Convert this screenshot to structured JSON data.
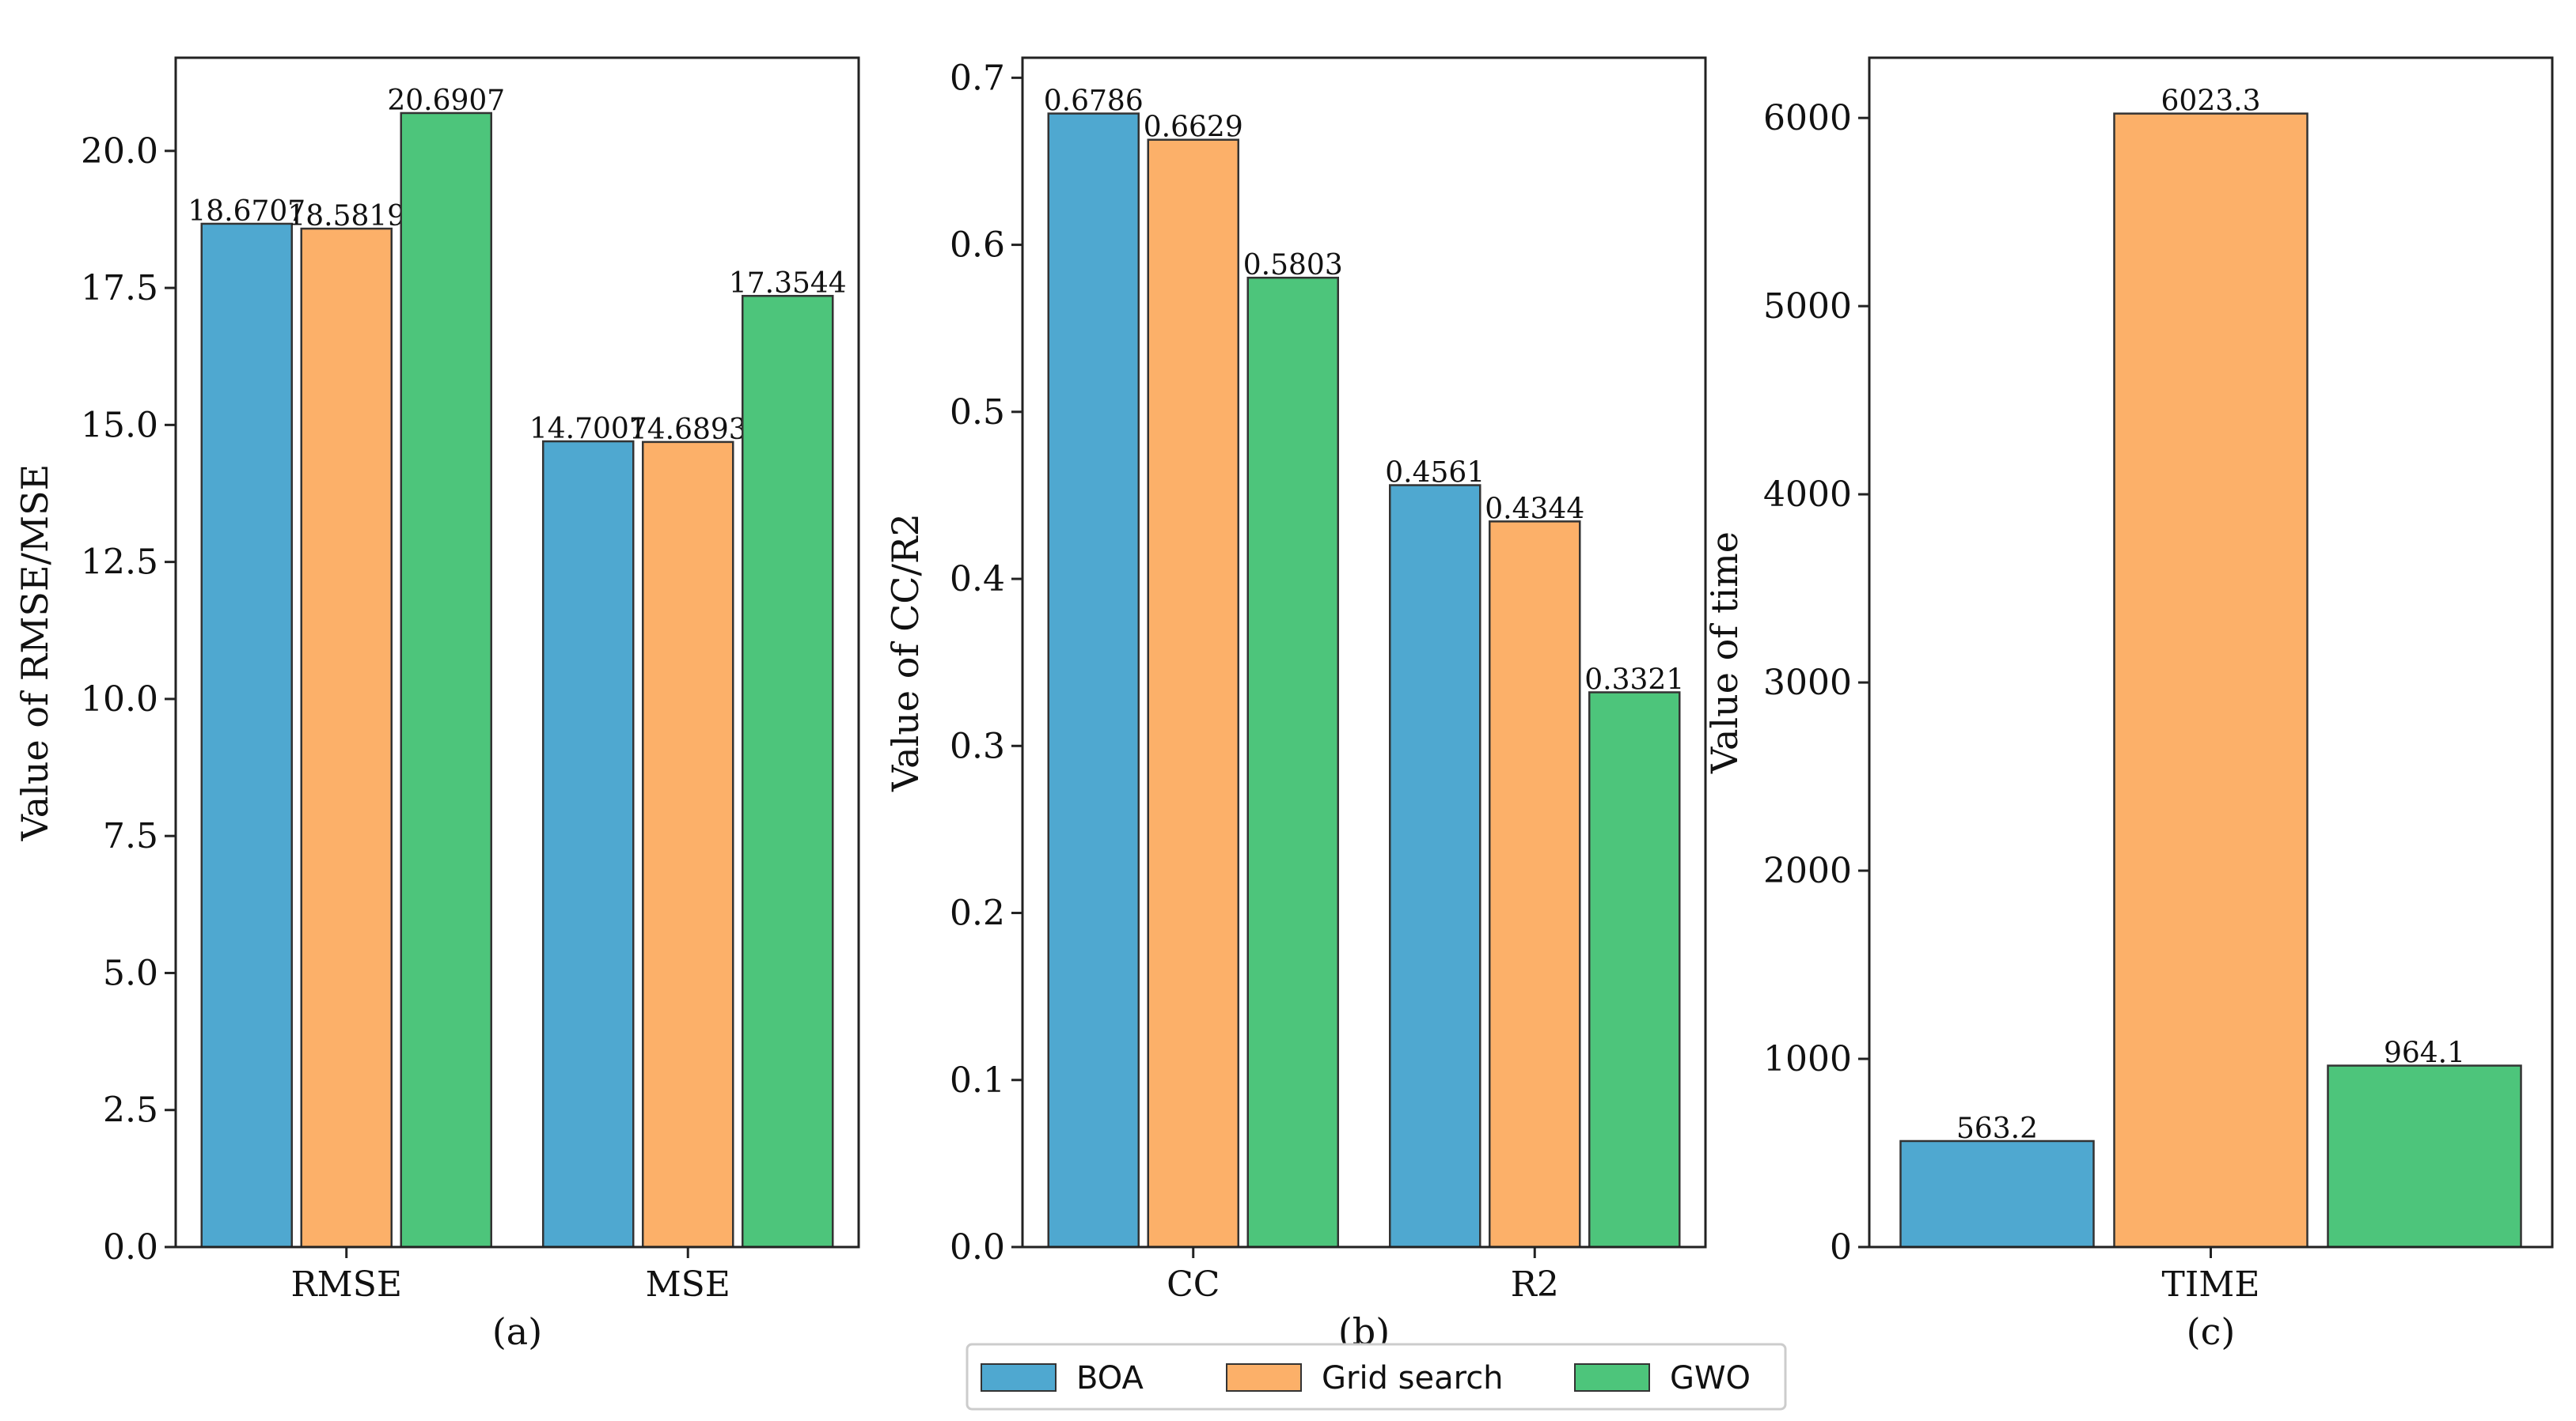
{
  "legend": [
    {
      "name": "BOA",
      "color": "#4fa8d0"
    },
    {
      "name": "Grid search",
      "color": "#fcb069"
    },
    {
      "name": "GWO",
      "color": "#4dc57b"
    }
  ],
  "chart_data": [
    {
      "type": "bar",
      "panel_label": "(a)",
      "ylabel": "Value of RMSE/MSE",
      "xlabel": "",
      "categories": [
        "RMSE",
        "MSE"
      ],
      "series": [
        {
          "name": "BOA",
          "values": [
            18.6707,
            14.7007
          ],
          "labels": [
            "18.6707",
            "14.7007"
          ]
        },
        {
          "name": "Grid search",
          "values": [
            18.5819,
            14.6893
          ],
          "labels": [
            "18.5819",
            "14.6893"
          ]
        },
        {
          "name": "GWO",
          "values": [
            20.6907,
            17.3544
          ],
          "labels": [
            "20.6907",
            "17.3544"
          ]
        }
      ],
      "ylim": [
        0,
        21.7
      ],
      "yticks": [
        0,
        2.5,
        5,
        7.5,
        10,
        12.5,
        15,
        17.5,
        20
      ],
      "ytick_labels": [
        "0.0",
        "2.5",
        "5.0",
        "7.5",
        "10.0",
        "12.5",
        "15.0",
        "17.5",
        "20.0"
      ]
    },
    {
      "type": "bar",
      "panel_label": "(b)",
      "ylabel": "Value of CC/R2",
      "xlabel": "",
      "categories": [
        "CC",
        "R2"
      ],
      "series": [
        {
          "name": "BOA",
          "values": [
            0.6786,
            0.4561
          ],
          "labels": [
            "0.6786",
            "0.4561"
          ]
        },
        {
          "name": "Grid search",
          "values": [
            0.6629,
            0.4344
          ],
          "labels": [
            "0.6629",
            "0.4344"
          ]
        },
        {
          "name": "GWO",
          "values": [
            0.5803,
            0.3321
          ],
          "labels": [
            "0.5803",
            "0.3321"
          ]
        }
      ],
      "ylim": [
        0,
        0.712
      ],
      "yticks": [
        0,
        0.1,
        0.2,
        0.3,
        0.4,
        0.5,
        0.6,
        0.7
      ],
      "ytick_labels": [
        "0.0",
        "0.1",
        "0.2",
        "0.3",
        "0.4",
        "0.5",
        "0.6",
        "0.7"
      ]
    },
    {
      "type": "bar",
      "panel_label": "(c)",
      "ylabel": "Value of time",
      "xlabel": "",
      "categories": [
        "TIME"
      ],
      "series": [
        {
          "name": "BOA",
          "values": [
            563.2
          ],
          "labels": [
            "563.2"
          ]
        },
        {
          "name": "Grid search",
          "values": [
            6023.3
          ],
          "labels": [
            "6023.3"
          ]
        },
        {
          "name": "GWO",
          "values": [
            964.1
          ],
          "labels": [
            "964.1"
          ]
        }
      ],
      "ylim": [
        0,
        6320
      ],
      "yticks": [
        0,
        1000,
        2000,
        3000,
        4000,
        5000,
        6000
      ],
      "ytick_labels": [
        "0",
        "1000",
        "2000",
        "3000",
        "4000",
        "5000",
        "6000"
      ]
    }
  ]
}
